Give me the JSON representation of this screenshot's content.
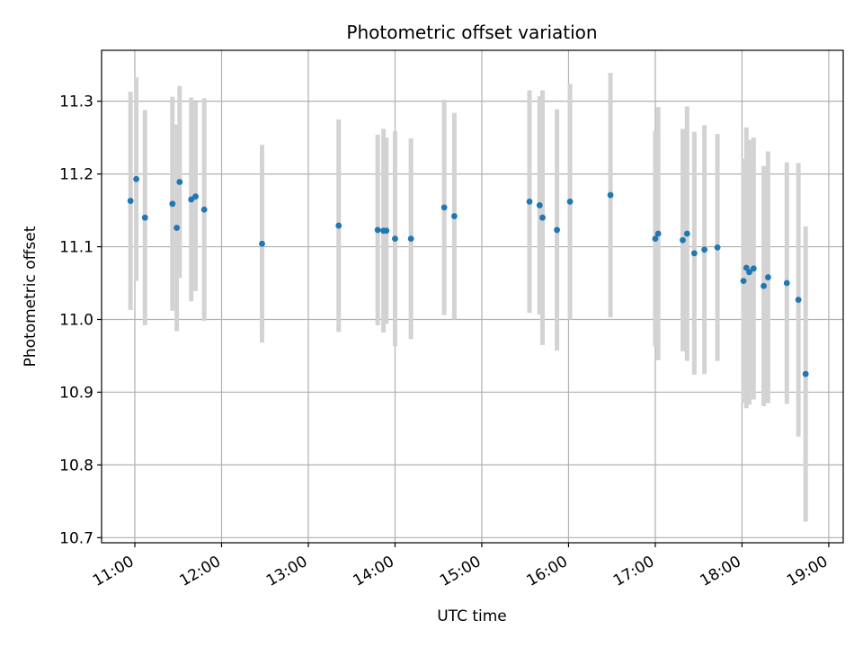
{
  "chart_data": {
    "type": "scatter",
    "title": "Photometric offset variation",
    "xlabel": "UTC time",
    "ylabel": "Photometric offset",
    "x_axis_kind": "time",
    "xlim": [
      "10:37",
      "19:10"
    ],
    "ylim": [
      10.693,
      11.37
    ],
    "grid": true,
    "x_ticks": [
      "11:00",
      "12:00",
      "13:00",
      "14:00",
      "15:00",
      "16:00",
      "17:00",
      "18:00",
      "19:00"
    ],
    "y_ticks": [
      "10.7",
      "10.8",
      "10.9",
      "11.0",
      "11.1",
      "11.2",
      "11.3"
    ],
    "colors": {
      "point": "#1f77b4",
      "errorbar": "#d3d3d3",
      "grid": "#b0b0b0"
    },
    "points": [
      {
        "x": "10:57",
        "y": 11.163,
        "err": 0.15
      },
      {
        "x": "11:01",
        "y": 11.193,
        "err": 0.14
      },
      {
        "x": "11:07",
        "y": 11.14,
        "err": 0.148
      },
      {
        "x": "11:26",
        "y": 11.159,
        "err": 0.147
      },
      {
        "x": "11:29",
        "y": 11.126,
        "err": 0.142
      },
      {
        "x": "11:31",
        "y": 11.189,
        "err": 0.132
      },
      {
        "x": "11:39",
        "y": 11.165,
        "err": 0.14
      },
      {
        "x": "11:42",
        "y": 11.169,
        "err": 0.13
      },
      {
        "x": "11:48",
        "y": 11.151,
        "err": 0.153
      },
      {
        "x": "12:28",
        "y": 11.104,
        "err": 0.136
      },
      {
        "x": "13:21",
        "y": 11.129,
        "err": 0.146
      },
      {
        "x": "13:48",
        "y": 11.123,
        "err": 0.131
      },
      {
        "x": "13:52",
        "y": 11.122,
        "err": 0.14
      },
      {
        "x": "13:54",
        "y": 11.122,
        "err": 0.128
      },
      {
        "x": "14:00",
        "y": 11.111,
        "err": 0.148
      },
      {
        "x": "14:11",
        "y": 11.111,
        "err": 0.138
      },
      {
        "x": "14:34",
        "y": 11.154,
        "err": 0.148
      },
      {
        "x": "14:41",
        "y": 11.142,
        "err": 0.142
      },
      {
        "x": "15:33",
        "y": 11.162,
        "err": 0.153
      },
      {
        "x": "15:40",
        "y": 11.157,
        "err": 0.15
      },
      {
        "x": "15:42",
        "y": 11.14,
        "err": 0.175
      },
      {
        "x": "15:52",
        "y": 11.123,
        "err": 0.166
      },
      {
        "x": "16:01",
        "y": 11.162,
        "err": 0.162
      },
      {
        "x": "16:29",
        "y": 11.171,
        "err": 0.168
      },
      {
        "x": "17:00",
        "y": 11.111,
        "err": 0.148
      },
      {
        "x": "17:02",
        "y": 11.118,
        "err": 0.174
      },
      {
        "x": "17:19",
        "y": 11.109,
        "err": 0.153
      },
      {
        "x": "17:22",
        "y": 11.118,
        "err": 0.175
      },
      {
        "x": "17:27",
        "y": 11.091,
        "err": 0.167
      },
      {
        "x": "17:34",
        "y": 11.096,
        "err": 0.171
      },
      {
        "x": "17:43",
        "y": 11.099,
        "err": 0.156
      },
      {
        "x": "18:01",
        "y": 11.053,
        "err": 0.168
      },
      {
        "x": "18:03",
        "y": 11.071,
        "err": 0.193
      },
      {
        "x": "18:05",
        "y": 11.065,
        "err": 0.182
      },
      {
        "x": "18:08",
        "y": 11.07,
        "err": 0.18
      },
      {
        "x": "18:15",
        "y": 11.046,
        "err": 0.165
      },
      {
        "x": "18:18",
        "y": 11.058,
        "err": 0.173
      },
      {
        "x": "18:31",
        "y": 11.05,
        "err": 0.166
      },
      {
        "x": "18:39",
        "y": 11.027,
        "err": 0.188
      },
      {
        "x": "18:44",
        "y": 10.925,
        "err": 0.203
      }
    ]
  }
}
